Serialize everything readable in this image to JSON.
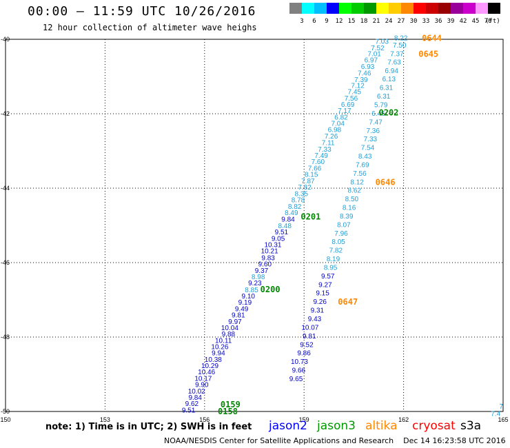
{
  "title": "00:00 – 11:59 UTC 10/26/2016",
  "subtitle": "12 hour collection of altimeter wave heighs",
  "colorbar": {
    "labels": [
      "3",
      "6",
      "9",
      "12",
      "15",
      "18",
      "21",
      "24",
      "27",
      "30",
      "33",
      "36",
      "39",
      "42",
      "45",
      "70"
    ],
    "unit": "(ft)",
    "colors": [
      "#808080",
      "#00ffff",
      "#00bfff",
      "#0000ff",
      "#00ff00",
      "#00cc00",
      "#009900",
      "#ffff00",
      "#ffcc00",
      "#ff8800",
      "#ff0000",
      "#cc0000",
      "#990000",
      "#990099",
      "#cc00cc",
      "#ff99ff",
      "#000000"
    ]
  },
  "note": "note:  1) Time is in UTC;  2) SWH is in feet",
  "legend": [
    {
      "name": "jason2",
      "color": "#0000ff"
    },
    {
      "name": "jason3",
      "color": "#009900"
    },
    {
      "name": "altika",
      "color": "#ff8800"
    },
    {
      "name": "cryosat",
      "color": "#ff0000"
    },
    {
      "name": "s3a",
      "color": "#000000"
    }
  ],
  "footer": "NOAA/NESDIS Center for Satellite Applications and Research    Dec 14 16:23:58 UTC 2016",
  "chart_data": {
    "type": "scatter",
    "title": "00:00 – 11:59 UTC 10/26/2016",
    "subtitle": "12 hour collection of altimeter wave heighs",
    "xlabel": "",
    "ylabel": "",
    "xlim": [
      150,
      165
    ],
    "ylim": [
      -50,
      -40
    ],
    "xticks": [
      150,
      153,
      156,
      159,
      162,
      165
    ],
    "yticks": [
      -40,
      -42,
      -44,
      -46,
      -48,
      -50
    ],
    "x_tick_labels": [
      "150",
      "153",
      "156",
      "159",
      "162",
      "165"
    ],
    "y_tick_labels": [
      "-40",
      "-42",
      "-44",
      "-46",
      "-48",
      "-50"
    ],
    "grid": true,
    "colors": {
      "lightblue": "#1ea0d8",
      "blue": "#0000cc",
      "green": "#008800",
      "orange": "#ff8800"
    },
    "points": [
      {
        "x": 161.55,
        "y": -40.05,
        "v": "7.03",
        "c": "lightblue"
      },
      {
        "x": 161.42,
        "y": -40.22,
        "v": "7.52",
        "c": "lightblue"
      },
      {
        "x": 161.32,
        "y": -40.38,
        "v": "7.01",
        "c": "lightblue"
      },
      {
        "x": 161.22,
        "y": -40.55,
        "v": "6.97",
        "c": "lightblue"
      },
      {
        "x": 161.12,
        "y": -40.72,
        "v": "6.93",
        "c": "lightblue"
      },
      {
        "x": 161.02,
        "y": -40.9,
        "v": "7.46",
        "c": "lightblue"
      },
      {
        "x": 160.92,
        "y": -41.07,
        "v": "7.39",
        "c": "lightblue"
      },
      {
        "x": 160.82,
        "y": -41.23,
        "v": "7.12",
        "c": "lightblue"
      },
      {
        "x": 160.72,
        "y": -41.4,
        "v": "7.45",
        "c": "lightblue"
      },
      {
        "x": 160.62,
        "y": -41.57,
        "v": "7.56",
        "c": "lightblue"
      },
      {
        "x": 160.52,
        "y": -41.74,
        "v": "6.69",
        "c": "lightblue"
      },
      {
        "x": 160.42,
        "y": -41.91,
        "v": "7.17",
        "c": "lightblue"
      },
      {
        "x": 160.32,
        "y": -42.08,
        "v": "6.82",
        "c": "lightblue"
      },
      {
        "x": 160.22,
        "y": -42.25,
        "v": "7.04",
        "c": "lightblue"
      },
      {
        "x": 160.12,
        "y": -42.42,
        "v": "6.98",
        "c": "lightblue"
      },
      {
        "x": 160.02,
        "y": -42.59,
        "v": "7.26",
        "c": "lightblue"
      },
      {
        "x": 159.92,
        "y": -42.77,
        "v": "7.11",
        "c": "lightblue"
      },
      {
        "x": 159.82,
        "y": -42.94,
        "v": "7.33",
        "c": "lightblue"
      },
      {
        "x": 159.72,
        "y": -43.11,
        "v": "7.49",
        "c": "lightblue"
      },
      {
        "x": 159.62,
        "y": -43.28,
        "v": "7.60",
        "c": "lightblue"
      },
      {
        "x": 159.52,
        "y": -43.45,
        "v": "7.66",
        "c": "lightblue"
      },
      {
        "x": 159.42,
        "y": -43.62,
        "v": "8.15",
        "c": "lightblue"
      },
      {
        "x": 159.32,
        "y": -43.8,
        "v": "7.87",
        "c": "lightblue"
      },
      {
        "x": 159.22,
        "y": -43.96,
        "v": "7.82",
        "c": "lightblue"
      },
      {
        "x": 159.12,
        "y": -44.14,
        "v": "8.35",
        "c": "lightblue"
      },
      {
        "x": 159.02,
        "y": -44.31,
        "v": "8.78",
        "c": "lightblue"
      },
      {
        "x": 158.92,
        "y": -44.48,
        "v": "8.82",
        "c": "lightblue"
      },
      {
        "x": 158.82,
        "y": -44.65,
        "v": "8.49",
        "c": "lightblue"
      },
      {
        "x": 158.72,
        "y": -44.82,
        "v": "9.84",
        "c": "blue"
      },
      {
        "x": 158.62,
        "y": -45.0,
        "v": "8.48",
        "c": "lightblue"
      },
      {
        "x": 158.52,
        "y": -45.17,
        "v": "9.51",
        "c": "blue"
      },
      {
        "x": 158.42,
        "y": -45.34,
        "v": "9.05",
        "c": "blue"
      },
      {
        "x": 158.32,
        "y": -45.51,
        "v": "10.31",
        "c": "blue"
      },
      {
        "x": 158.22,
        "y": -45.68,
        "v": "10.21",
        "c": "blue"
      },
      {
        "x": 158.12,
        "y": -45.86,
        "v": "9.83",
        "c": "blue"
      },
      {
        "x": 158.02,
        "y": -46.03,
        "v": "9.60",
        "c": "blue"
      },
      {
        "x": 157.92,
        "y": -46.2,
        "v": "9.37",
        "c": "blue"
      },
      {
        "x": 157.82,
        "y": -46.37,
        "v": "8.98",
        "c": "lightblue"
      },
      {
        "x": 157.72,
        "y": -46.54,
        "v": "9.23",
        "c": "blue"
      },
      {
        "x": 157.62,
        "y": -46.72,
        "v": "8.85",
        "c": "lightblue"
      },
      {
        "x": 157.52,
        "y": -46.89,
        "v": "9.10",
        "c": "blue"
      },
      {
        "x": 162.12,
        "y": -39.95,
        "v": "8.22",
        "c": "lightblue"
      },
      {
        "x": 162.08,
        "y": -40.15,
        "v": "7.50",
        "c": "lightblue"
      },
      {
        "x": 162.0,
        "y": -40.38,
        "v": "7.37",
        "c": "lightblue"
      },
      {
        "x": 161.92,
        "y": -40.6,
        "v": "7.63",
        "c": "lightblue"
      },
      {
        "x": 161.84,
        "y": -40.83,
        "v": "6.94",
        "c": "lightblue"
      },
      {
        "x": 161.76,
        "y": -41.06,
        "v": "6.13",
        "c": "lightblue"
      },
      {
        "x": 161.68,
        "y": -41.29,
        "v": "6.31",
        "c": "lightblue"
      },
      {
        "x": 161.6,
        "y": -41.52,
        "v": "6.31",
        "c": "lightblue"
      },
      {
        "x": 161.52,
        "y": -41.75,
        "v": "5.79",
        "c": "lightblue"
      },
      {
        "x": 161.44,
        "y": -41.98,
        "v": "6.46",
        "c": "lightblue"
      },
      {
        "x": 161.36,
        "y": -42.21,
        "v": "7.47",
        "c": "lightblue"
      },
      {
        "x": 161.28,
        "y": -42.44,
        "v": "7.36",
        "c": "lightblue"
      },
      {
        "x": 161.2,
        "y": -42.67,
        "v": "7.33",
        "c": "lightblue"
      },
      {
        "x": 161.12,
        "y": -42.9,
        "v": "7.54",
        "c": "lightblue"
      },
      {
        "x": 161.04,
        "y": -43.13,
        "v": "8.43",
        "c": "lightblue"
      },
      {
        "x": 160.96,
        "y": -43.36,
        "v": "7.69",
        "c": "lightblue"
      },
      {
        "x": 160.88,
        "y": -43.59,
        "v": "7.56",
        "c": "lightblue"
      },
      {
        "x": 160.8,
        "y": -43.82,
        "v": "8.12",
        "c": "lightblue"
      },
      {
        "x": 160.72,
        "y": -44.05,
        "v": "8.62",
        "c": "lightblue"
      },
      {
        "x": 160.64,
        "y": -44.28,
        "v": "8.50",
        "c": "lightblue"
      },
      {
        "x": 160.56,
        "y": -44.51,
        "v": "8.16",
        "c": "lightblue"
      },
      {
        "x": 160.48,
        "y": -44.74,
        "v": "8.39",
        "c": "lightblue"
      },
      {
        "x": 160.4,
        "y": -44.97,
        "v": "8.07",
        "c": "lightblue"
      },
      {
        "x": 160.32,
        "y": -45.2,
        "v": "7.96",
        "c": "lightblue"
      },
      {
        "x": 160.24,
        "y": -45.43,
        "v": "8.05",
        "c": "lightblue"
      },
      {
        "x": 160.16,
        "y": -45.66,
        "v": "7.82",
        "c": "lightblue"
      },
      {
        "x": 160.08,
        "y": -45.89,
        "v": "8.19",
        "c": "lightblue"
      },
      {
        "x": 160.0,
        "y": -46.12,
        "v": "8.95",
        "c": "lightblue"
      },
      {
        "x": 159.92,
        "y": -46.35,
        "v": "9.57",
        "c": "blue"
      },
      {
        "x": 159.84,
        "y": -46.58,
        "v": "9.27",
        "c": "blue"
      },
      {
        "x": 159.76,
        "y": -46.81,
        "v": "9.15",
        "c": "blue"
      },
      {
        "x": 159.68,
        "y": -47.04,
        "v": "9.26",
        "c": "blue"
      },
      {
        "x": 159.6,
        "y": -47.27,
        "v": "9.31",
        "c": "blue"
      },
      {
        "x": 159.52,
        "y": -47.5,
        "v": "9.43",
        "c": "blue"
      },
      {
        "x": 159.44,
        "y": -47.73,
        "v": "10.07",
        "c": "blue"
      },
      {
        "x": 159.36,
        "y": -47.96,
        "v": "9.81",
        "c": "blue"
      },
      {
        "x": 159.28,
        "y": -48.19,
        "v": "9.52",
        "c": "blue"
      },
      {
        "x": 159.2,
        "y": -48.42,
        "v": "9.86",
        "c": "blue"
      },
      {
        "x": 159.12,
        "y": -48.65,
        "v": "10.73",
        "c": "blue"
      },
      {
        "x": 159.04,
        "y": -48.88,
        "v": "9.66",
        "c": "blue"
      },
      {
        "x": 158.96,
        "y": -49.11,
        "v": "9.65",
        "c": "blue"
      },
      {
        "x": 157.42,
        "y": -47.06,
        "v": "9.19",
        "c": "blue"
      },
      {
        "x": 157.32,
        "y": -47.23,
        "v": "9.49",
        "c": "blue"
      },
      {
        "x": 157.22,
        "y": -47.4,
        "v": "9.81",
        "c": "blue"
      },
      {
        "x": 157.12,
        "y": -47.57,
        "v": "9.97",
        "c": "blue"
      },
      {
        "x": 157.02,
        "y": -47.74,
        "v": "10.04",
        "c": "blue"
      },
      {
        "x": 156.92,
        "y": -47.91,
        "v": "9.88",
        "c": "blue"
      },
      {
        "x": 156.82,
        "y": -48.08,
        "v": "10.11",
        "c": "blue"
      },
      {
        "x": 156.72,
        "y": -48.25,
        "v": "10.26",
        "c": "blue"
      },
      {
        "x": 156.62,
        "y": -48.42,
        "v": "9.94",
        "c": "blue"
      },
      {
        "x": 156.52,
        "y": -48.59,
        "v": "10.38",
        "c": "blue"
      },
      {
        "x": 156.42,
        "y": -48.76,
        "v": "10.29",
        "c": "blue"
      },
      {
        "x": 156.32,
        "y": -48.93,
        "v": "10.46",
        "c": "blue"
      },
      {
        "x": 156.22,
        "y": -49.1,
        "v": "10.17",
        "c": "blue"
      },
      {
        "x": 156.12,
        "y": -49.27,
        "v": "9.90",
        "c": "blue"
      },
      {
        "x": 156.02,
        "y": -49.44,
        "v": "10.02",
        "c": "blue"
      },
      {
        "x": 155.92,
        "y": -49.61,
        "v": "9.84",
        "c": "blue"
      },
      {
        "x": 155.82,
        "y": -49.78,
        "v": "9.62",
        "c": "blue"
      },
      {
        "x": 155.72,
        "y": -49.95,
        "v": "9.51",
        "c": "blue"
      },
      {
        "x": 165.0,
        "y": -49.85,
        "v": "7",
        "c": "lightblue"
      },
      {
        "x": 164.92,
        "y": -50.05,
        "v": "7.4",
        "c": "lightblue"
      }
    ],
    "time_labels": [
      {
        "x": 161.25,
        "y": -41.95,
        "v": "0202",
        "c": "green"
      },
      {
        "x": 158.9,
        "y": -44.75,
        "v": "0201",
        "c": "green"
      },
      {
        "x": 157.68,
        "y": -46.7,
        "v": "0200",
        "c": "green"
      },
      {
        "x": 156.48,
        "y": -49.8,
        "v": "0159",
        "c": "green"
      },
      {
        "x": 156.4,
        "y": -49.98,
        "v": "0158",
        "c": "green"
      },
      {
        "x": 162.55,
        "y": -39.95,
        "v": "0644",
        "c": "orange"
      },
      {
        "x": 162.45,
        "y": -40.38,
        "v": "0645",
        "c": "orange"
      },
      {
        "x": 161.15,
        "y": -43.82,
        "v": "0646",
        "c": "orange"
      },
      {
        "x": 160.02,
        "y": -47.04,
        "v": "0647",
        "c": "orange"
      }
    ]
  }
}
